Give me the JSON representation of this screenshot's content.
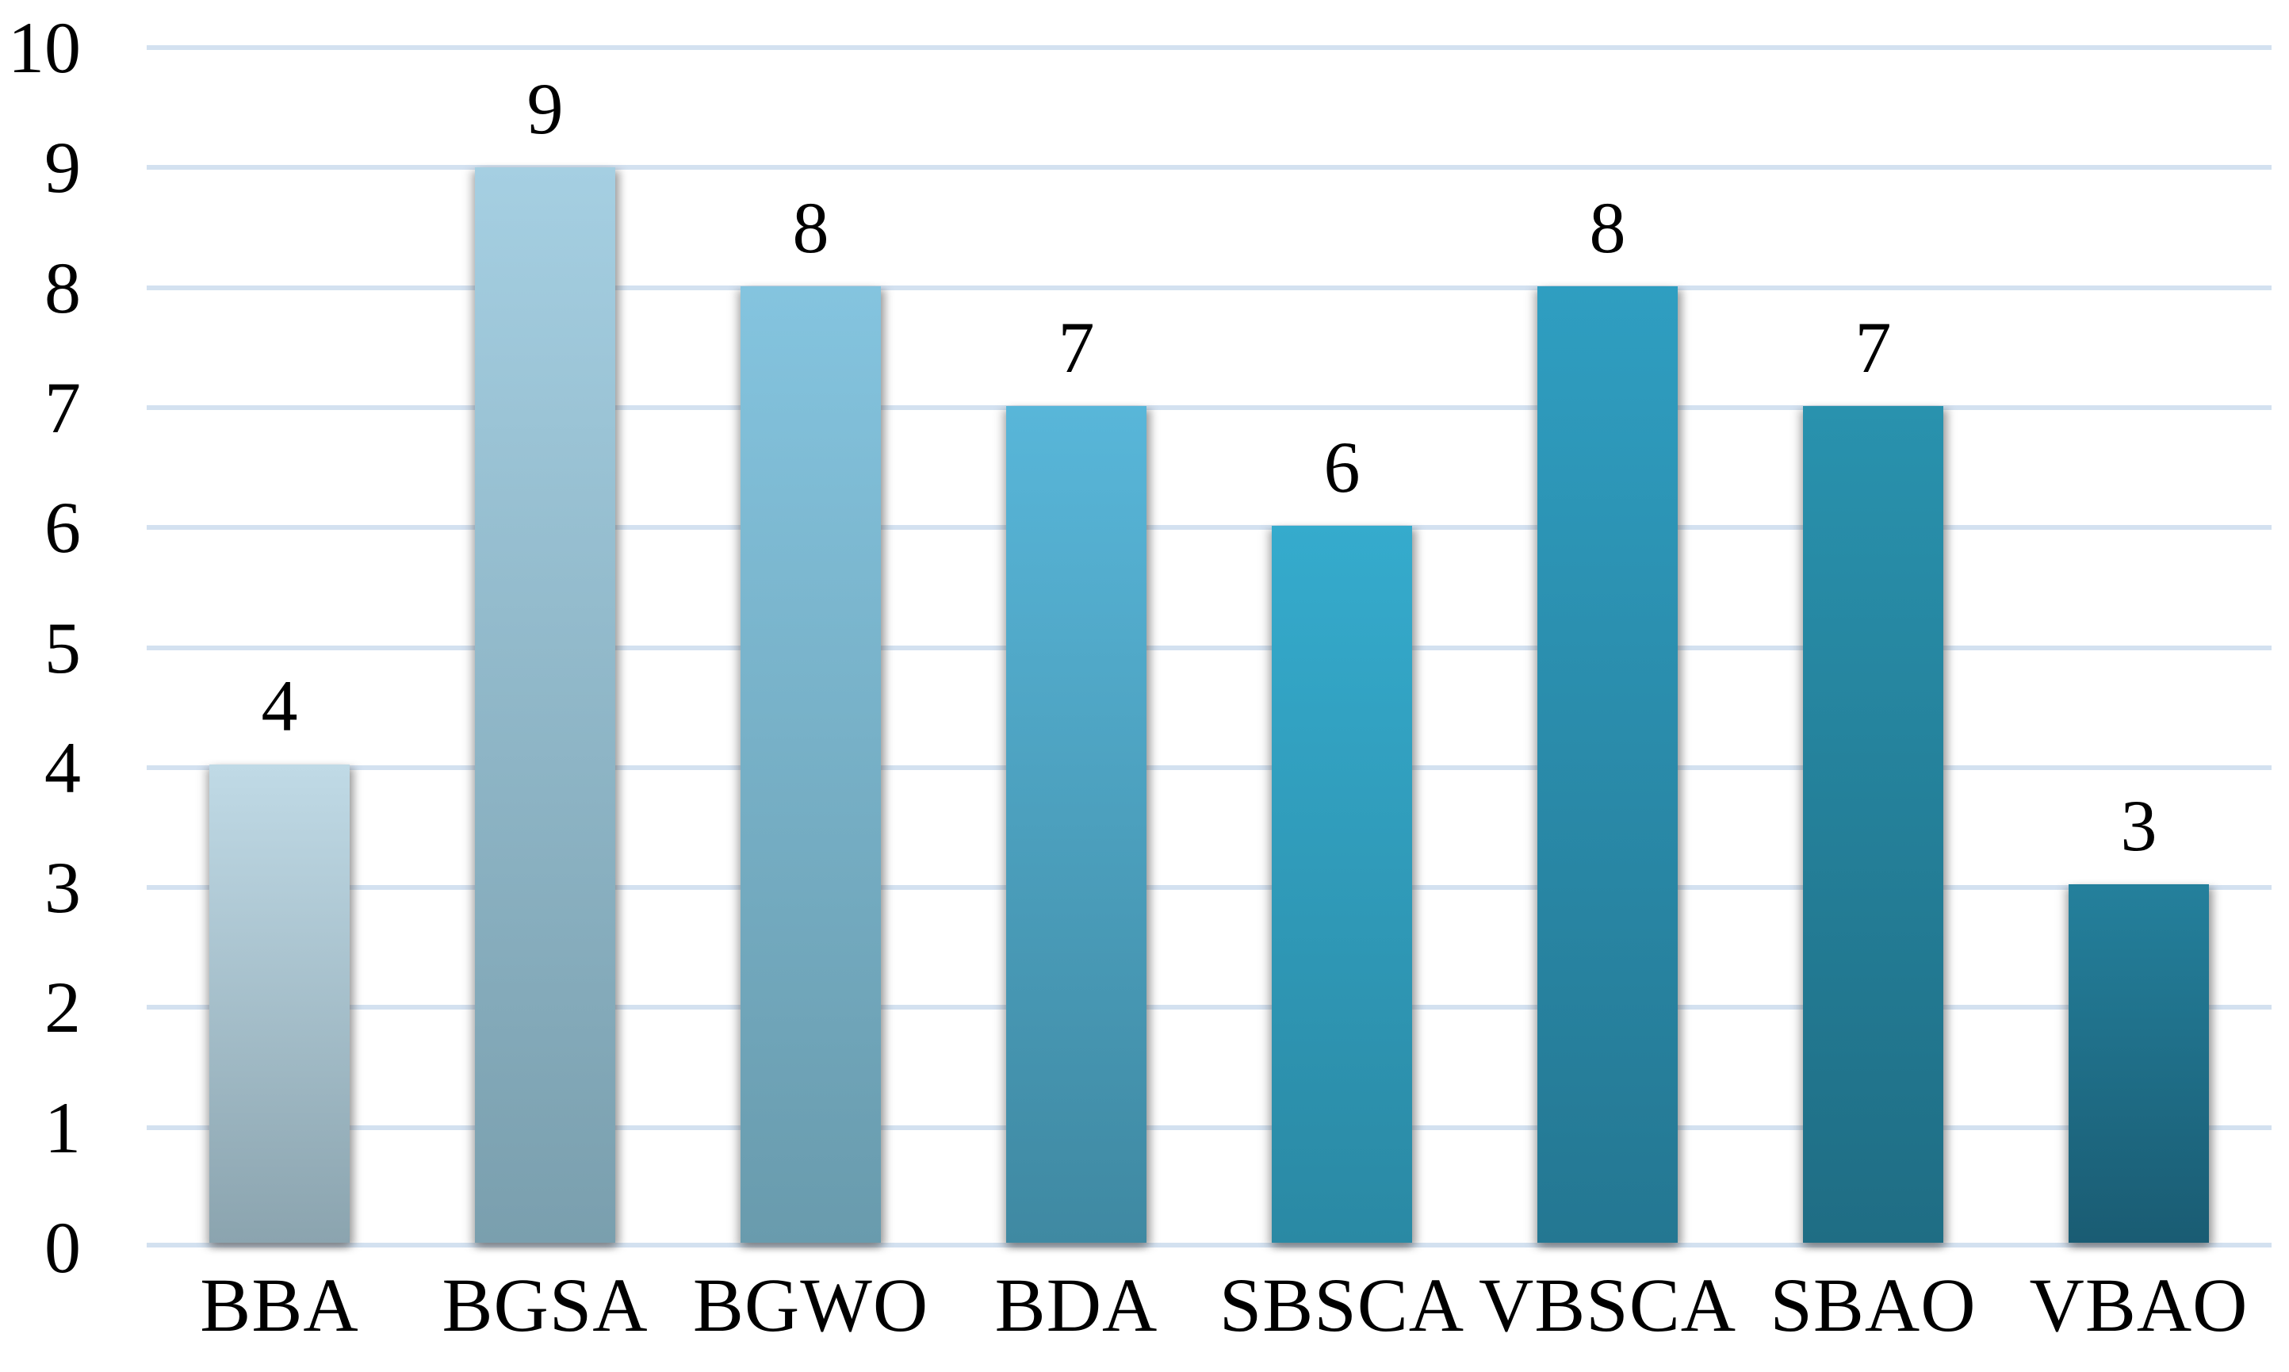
{
  "chart_data": {
    "type": "bar",
    "title": "",
    "xlabel": "",
    "ylabel": "",
    "categories": [
      "BBA",
      "BGSA",
      "BGWO",
      "BDA",
      "SBSCA",
      "VBSCA",
      "SBAO",
      "VBAO"
    ],
    "values": [
      4,
      9,
      8,
      7,
      6,
      8,
      7,
      3
    ],
    "ylim": [
      0,
      10
    ],
    "yticks": [
      0,
      1,
      2,
      3,
      4,
      5,
      6,
      7,
      8,
      9,
      10
    ],
    "grid": true,
    "legend": false,
    "gridline_color": "#d3e1f0",
    "text_color": "#000000",
    "bar_gradients": [
      {
        "top": "#c0dae6",
        "bottom": "#8ba4af"
      },
      {
        "top": "#a5cfe2",
        "bottom": "#7a9fae"
      },
      {
        "top": "#84c4df",
        "bottom": "#699bad"
      },
      {
        "top": "#58b6d9",
        "bottom": "#3f89a2"
      },
      {
        "top": "#35abcd",
        "bottom": "#2a89a4"
      },
      {
        "top": "#2f9ec1",
        "bottom": "#247792"
      },
      {
        "top": "#2992ae",
        "bottom": "#1f6d84"
      },
      {
        "top": "#24809c",
        "bottom": "#1a5c73"
      }
    ]
  }
}
